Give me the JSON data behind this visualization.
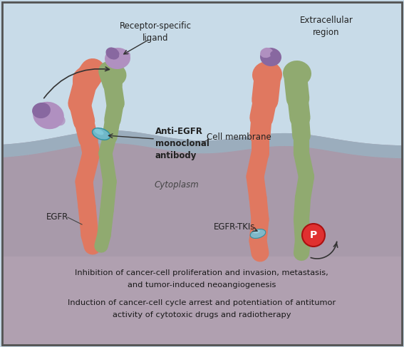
{
  "bg_light_blue": "#c5d8e5",
  "bg_extracellular": "#c8dbe8",
  "bg_cytoplasm": "#a89aaa",
  "membrane_color": "#9ab0c0",
  "border_color": "#555555",
  "receptor_orange": "#e07860",
  "receptor_green": "#90aa70",
  "ligand_purple_dark": "#8868a0",
  "ligand_purple_light": "#b090c0",
  "antibody_cyan": "#70b8c8",
  "phospho_red": "#e03030",
  "tki_cyan": "#80b8c8",
  "text_dark": "#222222",
  "bottom_area_bg": "#a898aa",
  "annotations": {
    "receptor_specific_ligand": "Receptor-specific\nligand",
    "anti_egfr": "Anti-EGFR\nmonoclonal\nantibody",
    "cell_membrane": "Cell membrane",
    "cytoplasm": "Cytoplasm",
    "egfr": "EGFR",
    "egfr_tkis": "EGFR-TKIs",
    "extracellular": "Extracellular\nregion",
    "p_label": "P",
    "text1_line1": "Inhibition of cancer-cell proliferation and invasion, metastasis,",
    "text1_line2": "and tumor-induced neoangiogenesis",
    "text2_line1": "Induction of cancer-cell cycle arrest and potentiation of antitumor",
    "text2_line2": "activity of cytotoxic drugs and radiotherapy"
  }
}
